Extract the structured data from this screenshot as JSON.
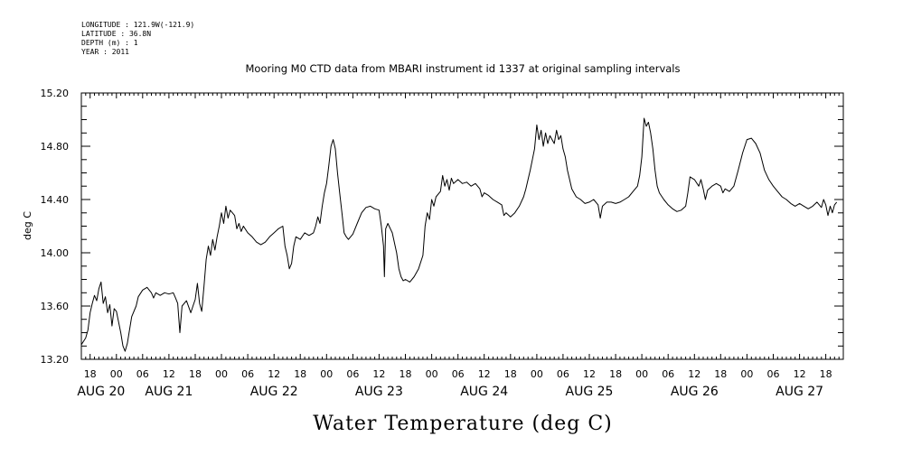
{
  "header": {
    "meta_lines": [
      "LONGITUDE : 121.9W(-121.9)",
      "LATITUDE : 36.8N",
      "DEPTH (m) : 1",
      "YEAR : 2011"
    ]
  },
  "chart_data": {
    "type": "line",
    "title": "Mooring M0 CTD data from MBARI instrument id 1337 at original sampling intervals",
    "xlabel": "Water Temperature (deg C)",
    "ylabel": "deg C",
    "ylim": [
      13.2,
      15.2
    ],
    "yticks": [
      "13.20",
      "13.60",
      "14.00",
      "14.40",
      "14.80",
      "15.20"
    ],
    "xlim_hours": [
      -8,
      166
    ],
    "hour_ticks": [
      {
        "h": -6,
        "label": "18"
      },
      {
        "h": 0,
        "label": "00"
      },
      {
        "h": 6,
        "label": "06"
      },
      {
        "h": 12,
        "label": "12"
      },
      {
        "h": 18,
        "label": "18"
      },
      {
        "h": 24,
        "label": "00"
      },
      {
        "h": 30,
        "label": "06"
      },
      {
        "h": 36,
        "label": "12"
      },
      {
        "h": 42,
        "label": "18"
      },
      {
        "h": 48,
        "label": "00"
      },
      {
        "h": 54,
        "label": "06"
      },
      {
        "h": 60,
        "label": "12"
      },
      {
        "h": 66,
        "label": "18"
      },
      {
        "h": 72,
        "label": "00"
      },
      {
        "h": 78,
        "label": "06"
      },
      {
        "h": 84,
        "label": "12"
      },
      {
        "h": 90,
        "label": "18"
      },
      {
        "h": 96,
        "label": "00"
      },
      {
        "h": 102,
        "label": "06"
      },
      {
        "h": 108,
        "label": "12"
      },
      {
        "h": 114,
        "label": "18"
      },
      {
        "h": 120,
        "label": "00"
      },
      {
        "h": 126,
        "label": "06"
      },
      {
        "h": 132,
        "label": "12"
      },
      {
        "h": 138,
        "label": "18"
      },
      {
        "h": 144,
        "label": "00"
      },
      {
        "h": 150,
        "label": "06"
      },
      {
        "h": 156,
        "label": "12"
      },
      {
        "h": 162,
        "label": "18"
      }
    ],
    "day_labels": [
      {
        "h": -3.5,
        "label": "AUG 20"
      },
      {
        "h": 12,
        "label": "AUG 21"
      },
      {
        "h": 36,
        "label": "AUG 22"
      },
      {
        "h": 60,
        "label": "AUG 23"
      },
      {
        "h": 84,
        "label": "AUG 24"
      },
      {
        "h": 108,
        "label": "AUG 25"
      },
      {
        "h": 132,
        "label": "AUG 26"
      },
      {
        "h": 156,
        "label": "AUG 27"
      }
    ],
    "series": [
      {
        "color": "#000000",
        "points": [
          [
            -8,
            13.31
          ],
          [
            -7,
            13.36
          ],
          [
            -6.5,
            13.42
          ],
          [
            -6,
            13.55
          ],
          [
            -5.5,
            13.62
          ],
          [
            -5,
            13.68
          ],
          [
            -4.5,
            13.64
          ],
          [
            -4,
            13.73
          ],
          [
            -3.5,
            13.78
          ],
          [
            -3,
            13.62
          ],
          [
            -2.5,
            13.67
          ],
          [
            -2,
            13.55
          ],
          [
            -1.5,
            13.61
          ],
          [
            -1,
            13.45
          ],
          [
            -0.5,
            13.58
          ],
          [
            0,
            13.56
          ],
          [
            0.5,
            13.48
          ],
          [
            1,
            13.4
          ],
          [
            1.5,
            13.3
          ],
          [
            2,
            13.26
          ],
          [
            2.5,
            13.32
          ],
          [
            3,
            13.42
          ],
          [
            3.5,
            13.52
          ],
          [
            4.5,
            13.6
          ],
          [
            5,
            13.67
          ],
          [
            6,
            13.72
          ],
          [
            7,
            13.74
          ],
          [
            8,
            13.7
          ],
          [
            8.5,
            13.66
          ],
          [
            9,
            13.7
          ],
          [
            10,
            13.68
          ],
          [
            11,
            13.7
          ],
          [
            12,
            13.69
          ],
          [
            13,
            13.7
          ],
          [
            13.5,
            13.66
          ],
          [
            14,
            13.62
          ],
          [
            14.5,
            13.4
          ],
          [
            15,
            13.6
          ],
          [
            16,
            13.64
          ],
          [
            17,
            13.55
          ],
          [
            17.5,
            13.6
          ],
          [
            18,
            13.65
          ],
          [
            18.5,
            13.77
          ],
          [
            19,
            13.62
          ],
          [
            19.5,
            13.56
          ],
          [
            20,
            13.75
          ],
          [
            20.5,
            13.95
          ],
          [
            21,
            14.05
          ],
          [
            21.5,
            13.98
          ],
          [
            22,
            14.1
          ],
          [
            22.5,
            14.02
          ],
          [
            23,
            14.12
          ],
          [
            23.5,
            14.2
          ],
          [
            24,
            14.3
          ],
          [
            24.5,
            14.22
          ],
          [
            25,
            14.35
          ],
          [
            25.5,
            14.26
          ],
          [
            26,
            14.32
          ],
          [
            27,
            14.28
          ],
          [
            27.5,
            14.18
          ],
          [
            28,
            14.22
          ],
          [
            28.5,
            14.16
          ],
          [
            29,
            14.2
          ],
          [
            30,
            14.15
          ],
          [
            31,
            14.12
          ],
          [
            32,
            14.08
          ],
          [
            33,
            14.06
          ],
          [
            34,
            14.08
          ],
          [
            35,
            14.12
          ],
          [
            36,
            14.15
          ],
          [
            37,
            14.18
          ],
          [
            38,
            14.2
          ],
          [
            38.5,
            14.05
          ],
          [
            39,
            13.98
          ],
          [
            39.5,
            13.88
          ],
          [
            40,
            13.92
          ],
          [
            40.5,
            14.05
          ],
          [
            41,
            14.12
          ],
          [
            42,
            14.1
          ],
          [
            43,
            14.15
          ],
          [
            44,
            14.13
          ],
          [
            45,
            14.15
          ],
          [
            45.5,
            14.2
          ],
          [
            46,
            14.27
          ],
          [
            46.5,
            14.22
          ],
          [
            47,
            14.35
          ],
          [
            47.5,
            14.45
          ],
          [
            48,
            14.52
          ],
          [
            48.5,
            14.65
          ],
          [
            49,
            14.8
          ],
          [
            49.5,
            14.85
          ],
          [
            50,
            14.78
          ],
          [
            50.5,
            14.6
          ],
          [
            51,
            14.45
          ],
          [
            51.5,
            14.3
          ],
          [
            52,
            14.15
          ],
          [
            52.5,
            14.12
          ],
          [
            53,
            14.1
          ],
          [
            54,
            14.14
          ],
          [
            55,
            14.22
          ],
          [
            56,
            14.3
          ],
          [
            57,
            14.34
          ],
          [
            58,
            14.35
          ],
          [
            59,
            14.33
          ],
          [
            60,
            14.32
          ],
          [
            60.5,
            14.2
          ],
          [
            61,
            14.05
          ],
          [
            61.2,
            13.82
          ],
          [
            61.5,
            14.18
          ],
          [
            62,
            14.22
          ],
          [
            63,
            14.15
          ],
          [
            64,
            14.0
          ],
          [
            64.5,
            13.88
          ],
          [
            65,
            13.82
          ],
          [
            65.5,
            13.79
          ],
          [
            66,
            13.8
          ],
          [
            67,
            13.78
          ],
          [
            68,
            13.82
          ],
          [
            69,
            13.88
          ],
          [
            70,
            13.98
          ],
          [
            70.5,
            14.2
          ],
          [
            71,
            14.3
          ],
          [
            71.5,
            14.25
          ],
          [
            72,
            14.4
          ],
          [
            72.5,
            14.35
          ],
          [
            73,
            14.42
          ],
          [
            74,
            14.46
          ],
          [
            74.5,
            14.58
          ],
          [
            75,
            14.5
          ],
          [
            75.5,
            14.55
          ],
          [
            76,
            14.47
          ],
          [
            76.5,
            14.56
          ],
          [
            77,
            14.52
          ],
          [
            78,
            14.55
          ],
          [
            79,
            14.52
          ],
          [
            80,
            14.53
          ],
          [
            81,
            14.5
          ],
          [
            82,
            14.52
          ],
          [
            83,
            14.48
          ],
          [
            83.5,
            14.42
          ],
          [
            84,
            14.45
          ],
          [
            85,
            14.43
          ],
          [
            86,
            14.4
          ],
          [
            87,
            14.38
          ],
          [
            88,
            14.36
          ],
          [
            88.5,
            14.28
          ],
          [
            89,
            14.3
          ],
          [
            90,
            14.27
          ],
          [
            91,
            14.3
          ],
          [
            92,
            14.35
          ],
          [
            93,
            14.42
          ],
          [
            93.5,
            14.48
          ],
          [
            94,
            14.55
          ],
          [
            94.5,
            14.62
          ],
          [
            95,
            14.7
          ],
          [
            95.5,
            14.78
          ],
          [
            96,
            14.96
          ],
          [
            96.5,
            14.85
          ],
          [
            97,
            14.92
          ],
          [
            97.5,
            14.8
          ],
          [
            98,
            14.9
          ],
          [
            98.5,
            14.82
          ],
          [
            99,
            14.88
          ],
          [
            100,
            14.82
          ],
          [
            100.5,
            14.92
          ],
          [
            101,
            14.85
          ],
          [
            101.5,
            14.88
          ],
          [
            102,
            14.78
          ],
          [
            102.5,
            14.72
          ],
          [
            103,
            14.62
          ],
          [
            103.5,
            14.55
          ],
          [
            104,
            14.48
          ],
          [
            105,
            14.42
          ],
          [
            106,
            14.4
          ],
          [
            107,
            14.37
          ],
          [
            108,
            14.38
          ],
          [
            109,
            14.4
          ],
          [
            110,
            14.36
          ],
          [
            110.5,
            14.26
          ],
          [
            111,
            14.35
          ],
          [
            112,
            14.38
          ],
          [
            113,
            14.38
          ],
          [
            114,
            14.37
          ],
          [
            115,
            14.38
          ],
          [
            116,
            14.4
          ],
          [
            117,
            14.42
          ],
          [
            118,
            14.46
          ],
          [
            119,
            14.5
          ],
          [
            119.5,
            14.58
          ],
          [
            120,
            14.72
          ],
          [
            120.5,
            15.01
          ],
          [
            121,
            14.95
          ],
          [
            121.5,
            14.98
          ],
          [
            122,
            14.9
          ],
          [
            122.5,
            14.78
          ],
          [
            123,
            14.62
          ],
          [
            123.5,
            14.5
          ],
          [
            124,
            14.45
          ],
          [
            125,
            14.4
          ],
          [
            126,
            14.36
          ],
          [
            127,
            14.33
          ],
          [
            128,
            14.31
          ],
          [
            129,
            14.32
          ],
          [
            130,
            14.35
          ],
          [
            130.5,
            14.45
          ],
          [
            131,
            14.57
          ],
          [
            132,
            14.55
          ],
          [
            133,
            14.5
          ],
          [
            133.5,
            14.55
          ],
          [
            134,
            14.48
          ],
          [
            134.5,
            14.4
          ],
          [
            135,
            14.47
          ],
          [
            136,
            14.5
          ],
          [
            137,
            14.52
          ],
          [
            138,
            14.5
          ],
          [
            138.5,
            14.45
          ],
          [
            139,
            14.48
          ],
          [
            140,
            14.46
          ],
          [
            141,
            14.5
          ],
          [
            142,
            14.62
          ],
          [
            143,
            14.75
          ],
          [
            144,
            14.85
          ],
          [
            145,
            14.86
          ],
          [
            146,
            14.82
          ],
          [
            147,
            14.75
          ],
          [
            148,
            14.62
          ],
          [
            149,
            14.55
          ],
          [
            150,
            14.5
          ],
          [
            151,
            14.46
          ],
          [
            152,
            14.42
          ],
          [
            153,
            14.4
          ],
          [
            154,
            14.37
          ],
          [
            155,
            14.35
          ],
          [
            156,
            14.37
          ],
          [
            157,
            14.35
          ],
          [
            158,
            14.33
          ],
          [
            159,
            14.35
          ],
          [
            160,
            14.38
          ],
          [
            161,
            14.34
          ],
          [
            161.5,
            14.4
          ],
          [
            162,
            14.36
          ],
          [
            162.5,
            14.28
          ],
          [
            163,
            14.35
          ],
          [
            163.5,
            14.3
          ],
          [
            164,
            14.36
          ],
          [
            164.5,
            14.38
          ]
        ]
      }
    ]
  }
}
